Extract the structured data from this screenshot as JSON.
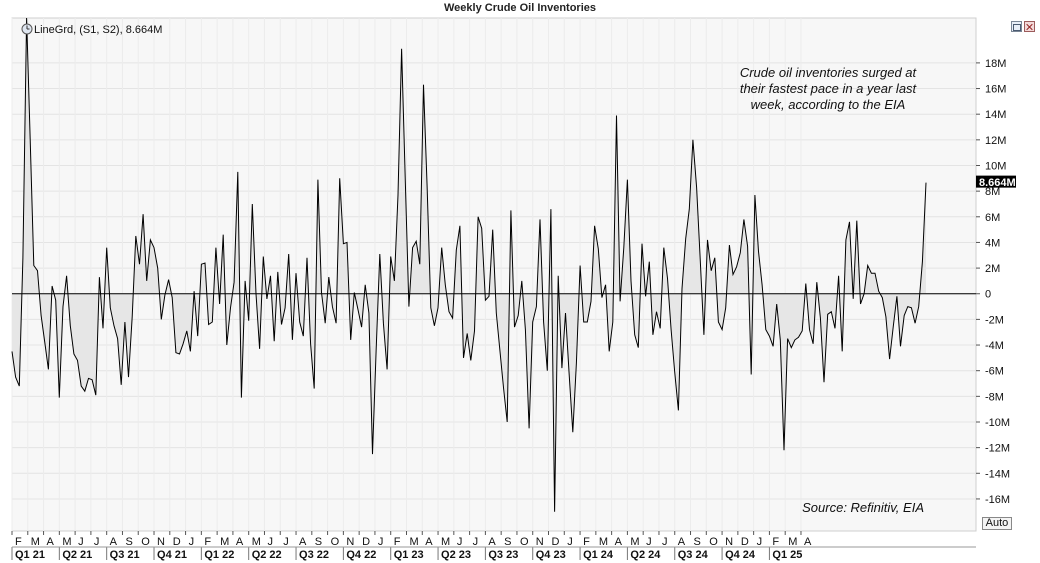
{
  "window": {
    "title": "Weekly Crude Oil Inventories"
  },
  "legend": {
    "label": "LineGrd, (S1, S2), 8.664M",
    "icon": "clock-icon"
  },
  "annotation": {
    "lines": [
      "Crude oil inventories surged at",
      "their fastest pace in a year last",
      "week, according to the EIA"
    ]
  },
  "source": {
    "text": "Source: Refinitiv, EIA"
  },
  "controls": {
    "auto_label": "Auto",
    "restore_icon": "restore-icon",
    "close_icon": "close-icon"
  },
  "colors": {
    "line": "#000000",
    "fill": "#e6e6e6",
    "plot_bg": "#f7f7f7",
    "grid": "#e6e6e6",
    "last_label_bg": "#000000",
    "last_label_fg": "#ffffff"
  },
  "chart_data": {
    "type": "area",
    "title": "Weekly Crude Oil Inventories",
    "ylim": [
      -18.5,
      21.5
    ],
    "y_ticks": [
      -16,
      -14,
      -12,
      -10,
      -8,
      -6,
      -4,
      -2,
      0,
      2,
      4,
      6,
      8,
      10,
      12,
      14,
      16,
      18
    ],
    "y_tick_labels": [
      "-16M",
      "-14M",
      "-12M",
      "-10M",
      "-8M",
      "-6M",
      "-4M",
      "-2M",
      "0",
      "2M",
      "4M",
      "6M",
      "8M",
      "10M",
      "12M",
      "14M",
      "16M",
      "18M"
    ],
    "y_unit": "M",
    "last_value": 8.664,
    "last_value_label": "8.664M",
    "grid": true,
    "month_labels": [
      "F",
      "M",
      "A",
      "M",
      "J",
      "J",
      "A",
      "S",
      "O",
      "N",
      "D",
      "J",
      "F",
      "M",
      "A",
      "M",
      "J",
      "J",
      "A",
      "S",
      "O",
      "N",
      "D",
      "J",
      "F",
      "M",
      "A",
      "M",
      "J",
      "J",
      "A",
      "S",
      "O",
      "N",
      "D",
      "J",
      "F",
      "M",
      "A",
      "M",
      "J",
      "J",
      "A",
      "S",
      "O",
      "N",
      "D",
      "J",
      "F",
      "M",
      "A"
    ],
    "quarter_labels": [
      "Q1 21",
      "Q2 21",
      "Q3 21",
      "Q4 21",
      "Q1 22",
      "Q2 22",
      "Q3 22",
      "Q4 22",
      "Q1 23",
      "Q2 23",
      "Q3 23",
      "Q4 23",
      "Q1 24",
      "Q2 24",
      "Q3 24",
      "Q4 24",
      "Q1 25"
    ],
    "series": [
      {
        "values": [
          -4.5,
          -6.5,
          -7.2,
          2.8,
          21.5,
          12.0,
          2.2,
          1.8,
          -1.7,
          -3.8,
          -5.9,
          0.6,
          -0.5,
          -8.1,
          -1.0,
          1.4,
          -2.5,
          -4.7,
          -5.2,
          -7.2,
          -7.6,
          -6.6,
          -6.7,
          -7.9,
          1.3,
          -2.7,
          3.6,
          -1.1,
          -2.5,
          -3.5,
          -7.1,
          -2.2,
          -6.5,
          -1.8,
          4.5,
          2.3,
          6.2,
          1.0,
          4.2,
          3.6,
          2.0,
          -2.0,
          -0.1,
          1.1,
          -0.3,
          -4.6,
          -4.7,
          -3.9,
          -2.9,
          -4.5,
          0.2,
          -3.3,
          2.3,
          2.4,
          -2.4,
          -2.2,
          3.6,
          -0.8,
          4.6,
          -4.0,
          -1.1,
          0.9,
          9.5,
          -8.1,
          1.0,
          -2.1,
          7.0,
          0.0,
          -4.3,
          2.9,
          -0.4,
          1.4,
          -3.7,
          1.7,
          -2.4,
          -1.1,
          3.1,
          -3.6,
          1.6,
          -2.2,
          -3.3,
          2.8,
          -3.9,
          -7.4,
          8.9,
          0.1,
          -2.3,
          1.3,
          -1.0,
          -2.3,
          9.0,
          3.9,
          4.0,
          -3.6,
          0.1,
          -1.2,
          -2.6,
          0.7,
          -1.5,
          -12.5,
          -4.5,
          3.1,
          -2.3,
          -5.9,
          2.9,
          1.0,
          7.7,
          19.1,
          8.8,
          -1.0,
          3.6,
          4.1,
          2.3,
          16.3,
          8.4,
          -1.1,
          -2.5,
          -1.1,
          3.6,
          0.7,
          -1.4,
          -1.9,
          3.4,
          5.3,
          -5.0,
          -3.1,
          -5.2,
          -2.9,
          6.0,
          5.1,
          -0.5,
          -0.2,
          5.0,
          -1.5,
          -4.5,
          -7.4,
          -10.0,
          6.5,
          -2.6,
          -1.7,
          1.0,
          -2.8,
          -10.5,
          -2.2,
          -1.0,
          5.8,
          -2.2,
          -6.0,
          6.6,
          -17.0,
          1.4,
          -5.8,
          -1.5,
          -6.2,
          -10.8,
          -5.4,
          2.2,
          -2.2,
          -2.2,
          -0.6,
          5.3,
          3.5,
          -0.3,
          0.7,
          -4.5,
          -2.2,
          13.9,
          -0.6,
          3.6,
          8.9,
          1.0,
          -3.2,
          -4.2,
          3.9,
          -0.2,
          2.5,
          -3.2,
          -1.4,
          -2.7,
          3.6,
          1.2,
          -2.8,
          -6.1,
          -9.1,
          0.4,
          4.3,
          6.6,
          12.0,
          8.3,
          2.7,
          -3.2,
          4.2,
          1.8,
          2.8,
          -2.2,
          -2.8,
          -1.1,
          3.8,
          1.5,
          2.1,
          3.2,
          5.8,
          3.7,
          -6.3,
          7.7,
          3.3,
          0.7,
          -2.8,
          -3.3,
          -4.1,
          -0.8,
          -3.6,
          -12.2,
          -3.5,
          -4.2,
          -3.6,
          -3.4,
          -2.9,
          0.8,
          -2.8,
          -3.9,
          0.9,
          -1.9,
          -6.9,
          -1.6,
          -1.4,
          -2.7,
          1.4,
          -4.5,
          4.2,
          5.6,
          -0.4,
          5.7,
          -0.8,
          0.0,
          2.2,
          1.6,
          1.6,
          0.2,
          -0.3,
          -1.8,
          -5.1,
          -2.6,
          -0.2,
          -4.1,
          -1.7,
          -1.0,
          -1.1,
          -2.3,
          -1.0,
          2.5,
          8.664
        ]
      }
    ]
  }
}
